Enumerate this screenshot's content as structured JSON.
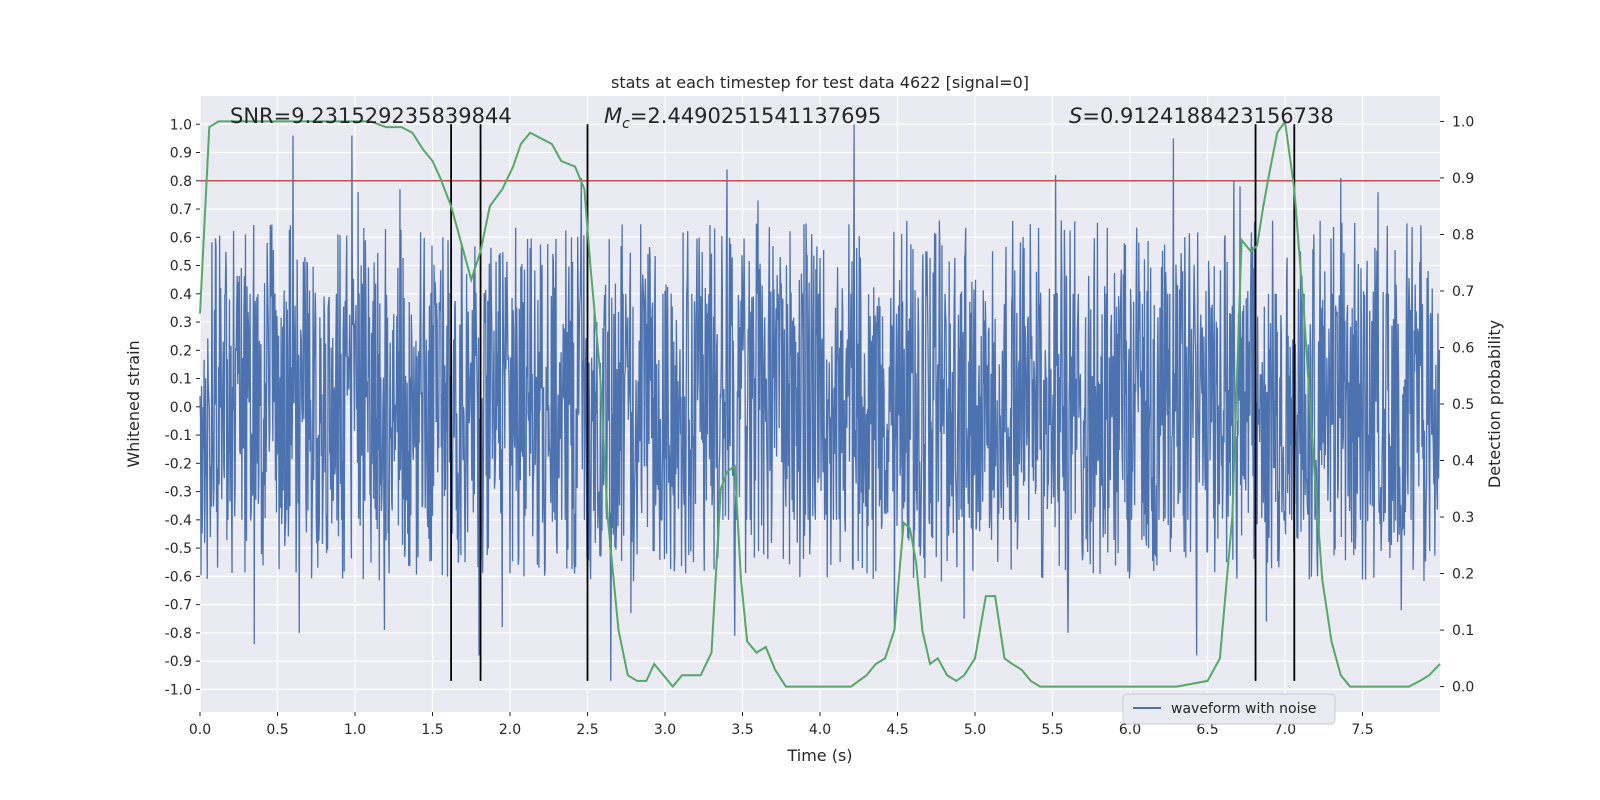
{
  "chart_data": {
    "type": "line",
    "title": "stats at each timestep for test data 4622 [signal=0]",
    "xlabel": "Time (s)",
    "ylabel": "Whitened strain",
    "y2label": "Detection probability",
    "xlim": [
      0.0,
      8.0
    ],
    "ylim": [
      -1.08,
      1.1
    ],
    "y2lim": [
      -0.045,
      1.045
    ],
    "xticks": [
      "0.0",
      "0.5",
      "1.0",
      "1.5",
      "2.0",
      "2.5",
      "3.0",
      "3.5",
      "4.0",
      "4.5",
      "5.0",
      "5.5",
      "6.0",
      "6.5",
      "7.0",
      "7.5"
    ],
    "yticks": [
      "1.0",
      "0.9",
      "0.8",
      "0.7",
      "0.6",
      "0.5",
      "0.4",
      "0.3",
      "0.2",
      "0.1",
      "0.0",
      "-0.1",
      "-0.2",
      "-0.3",
      "-0.4",
      "-0.5",
      "-0.6",
      "-0.7",
      "-0.8",
      "-0.9",
      "-1.0"
    ],
    "y2ticks": [
      "0.0",
      "0.1",
      "0.2",
      "0.3",
      "0.4",
      "0.5",
      "0.6",
      "0.7",
      "0.8",
      "0.9",
      "1.0"
    ],
    "grid": true,
    "legend": {
      "position": "lower-right",
      "entries": [
        "waveform with noise"
      ]
    },
    "annotations": {
      "snr": "SNR=9.231529235839844",
      "mc_prefix": "M",
      "mc_sub": "c",
      "mc_value": "=2.4490251541137695",
      "s_prefix": "S",
      "s_value": "=0.9124188423156738"
    },
    "threshold_line": {
      "y": 0.8,
      "color": "#c44e52"
    },
    "vertical_markers": [
      1.62,
      1.81,
      2.5,
      6.81,
      7.06
    ],
    "marker_range_y": [
      -0.97,
      1.0
    ],
    "series": [
      {
        "name": "waveform with noise",
        "color": "#4c72b0",
        "samples": 2400,
        "band_bulk": 0.4,
        "band_upper_max": 0.66,
        "band_lower_min": -0.62,
        "spikes": [
          [
            0.35,
            -0.84
          ],
          [
            0.6,
            0.96
          ],
          [
            0.64,
            -0.8
          ],
          [
            0.98,
            0.96
          ],
          [
            1.02,
            0.76
          ],
          [
            1.19,
            -0.79
          ],
          [
            1.29,
            0.77
          ],
          [
            1.8,
            -0.88
          ],
          [
            1.95,
            -0.78
          ],
          [
            2.46,
            0.81
          ],
          [
            2.65,
            -0.97
          ],
          [
            2.78,
            -0.73
          ],
          [
            3.4,
            0.84
          ],
          [
            3.45,
            -0.81
          ],
          [
            3.6,
            0.73
          ],
          [
            4.22,
            1.0
          ],
          [
            4.48,
            -0.77
          ],
          [
            4.93,
            -0.75
          ],
          [
            5.52,
            0.82
          ],
          [
            5.6,
            -0.8
          ],
          [
            6.28,
            0.95
          ],
          [
            6.43,
            -0.88
          ],
          [
            6.67,
            0.8
          ],
          [
            6.71,
            0.78
          ],
          [
            6.88,
            -0.76
          ],
          [
            7.36,
            0.81
          ],
          [
            7.6,
            0.76
          ],
          [
            7.75,
            -0.72
          ]
        ]
      },
      {
        "name": "detection probability",
        "color": "#55a868",
        "axis": "right",
        "x": [
          0.0,
          0.06,
          0.12,
          0.2,
          0.3,
          0.4,
          0.5,
          0.6,
          0.7,
          0.8,
          0.9,
          1.0,
          1.1,
          1.2,
          1.3,
          1.37,
          1.44,
          1.5,
          1.55,
          1.62,
          1.69,
          1.75,
          1.81,
          1.87,
          1.95,
          2.02,
          2.07,
          2.13,
          2.2,
          2.27,
          2.33,
          2.42,
          2.48,
          2.52,
          2.58,
          2.63,
          2.7,
          2.76,
          2.82,
          2.88,
          2.93,
          2.99,
          3.05,
          3.11,
          3.17,
          3.23,
          3.3,
          3.36,
          3.4,
          3.45,
          3.49,
          3.53,
          3.59,
          3.65,
          3.71,
          3.78,
          3.84,
          3.9,
          4.0,
          4.1,
          4.2,
          4.3,
          4.36,
          4.42,
          4.48,
          4.54,
          4.58,
          4.62,
          4.66,
          4.71,
          4.76,
          4.82,
          4.88,
          4.93,
          5.0,
          5.07,
          5.13,
          5.19,
          5.24,
          5.3,
          5.36,
          5.42,
          5.48,
          5.55,
          5.7,
          6.0,
          6.3,
          6.5,
          6.58,
          6.66,
          6.72,
          6.78,
          6.82,
          6.86,
          6.9,
          6.95,
          7.0,
          7.06,
          7.12,
          7.18,
          7.24,
          7.3,
          7.36,
          7.42,
          7.5,
          7.6,
          7.7,
          7.8,
          7.87,
          7.93,
          8.0
        ],
        "y": [
          0.66,
          0.99,
          1.0,
          1.0,
          1.0,
          1.0,
          1.0,
          1.0,
          1.0,
          1.0,
          1.0,
          1.0,
          1.0,
          0.99,
          0.99,
          0.98,
          0.95,
          0.93,
          0.9,
          0.85,
          0.78,
          0.72,
          0.77,
          0.85,
          0.88,
          0.92,
          0.96,
          0.98,
          0.97,
          0.96,
          0.93,
          0.92,
          0.88,
          0.74,
          0.56,
          0.3,
          0.1,
          0.02,
          0.01,
          0.01,
          0.04,
          0.02,
          0.0,
          0.02,
          0.02,
          0.02,
          0.06,
          0.35,
          0.38,
          0.39,
          0.19,
          0.08,
          0.06,
          0.07,
          0.03,
          0.0,
          0.0,
          0.0,
          0.0,
          0.0,
          0.0,
          0.02,
          0.04,
          0.05,
          0.1,
          0.29,
          0.28,
          0.22,
          0.1,
          0.04,
          0.05,
          0.02,
          0.01,
          0.02,
          0.05,
          0.16,
          0.16,
          0.05,
          0.04,
          0.03,
          0.01,
          0.0,
          0.0,
          0.0,
          0.0,
          0.0,
          0.0,
          0.01,
          0.05,
          0.3,
          0.79,
          0.77,
          0.78,
          0.85,
          0.91,
          0.98,
          1.0,
          0.88,
          0.67,
          0.42,
          0.19,
          0.08,
          0.02,
          0.0,
          0.0,
          0.0,
          0.0,
          0.0,
          0.01,
          0.02,
          0.04
        ]
      }
    ]
  }
}
